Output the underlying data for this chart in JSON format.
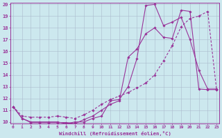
{
  "xlabel": "Windchill (Refroidissement éolien,°C)",
  "bg_color": "#cce8ee",
  "line_color": "#993399",
  "grid_color": "#aabbcc",
  "xlim_min": 0,
  "xlim_max": 23,
  "ylim_min": 10,
  "ylim_max": 20,
  "xticks": [
    0,
    1,
    2,
    3,
    4,
    5,
    6,
    7,
    8,
    9,
    10,
    11,
    12,
    13,
    14,
    15,
    16,
    17,
    18,
    19,
    20,
    21,
    22,
    23
  ],
  "yticks": [
    10,
    11,
    12,
    13,
    14,
    15,
    16,
    17,
    18,
    19,
    20
  ],
  "curve1_x": [
    0,
    1,
    2,
    3,
    4,
    5,
    6,
    7,
    8,
    9,
    10,
    11,
    12,
    13,
    14,
    15,
    16,
    17,
    18,
    19,
    20,
    21,
    22,
    23
  ],
  "curve1_y": [
    11.3,
    10.3,
    10.0,
    10.0,
    10.0,
    10.0,
    9.85,
    10.0,
    10.0,
    10.3,
    10.5,
    11.8,
    11.9,
    13.0,
    15.4,
    19.9,
    20.0,
    18.2,
    18.5,
    18.9,
    17.0,
    14.4,
    12.8,
    12.8
  ],
  "curve2_x": [
    0,
    1,
    2,
    3,
    4,
    5,
    6,
    7,
    8,
    9,
    10,
    11,
    12,
    13,
    14,
    15,
    16,
    17,
    18,
    19,
    20,
    21,
    22,
    23
  ],
  "curve2_y": [
    11.3,
    10.3,
    9.95,
    9.95,
    9.95,
    9.95,
    9.95,
    9.85,
    10.2,
    10.5,
    11.0,
    11.5,
    11.8,
    15.5,
    16.2,
    17.5,
    18.0,
    17.2,
    17.1,
    19.5,
    19.4,
    12.8,
    12.75,
    12.75
  ],
  "curve3_x": [
    0,
    1,
    2,
    3,
    4,
    5,
    6,
    7,
    8,
    9,
    10,
    11,
    12,
    13,
    14,
    15,
    16,
    17,
    18,
    19,
    20,
    21,
    22,
    23
  ],
  "curve3_y": [
    11.3,
    10.5,
    10.4,
    10.4,
    10.4,
    10.5,
    10.4,
    10.3,
    10.6,
    11.0,
    11.5,
    11.9,
    12.2,
    12.5,
    12.9,
    13.3,
    14.0,
    15.2,
    16.5,
    18.1,
    18.8,
    19.0,
    19.4,
    12.75
  ]
}
